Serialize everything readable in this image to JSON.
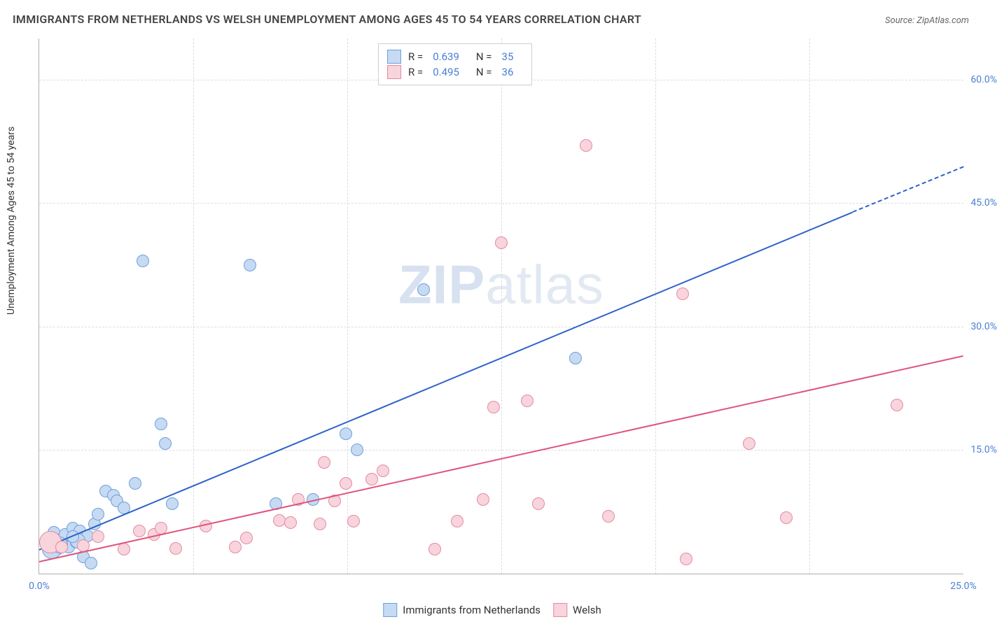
{
  "title": "IMMIGRANTS FROM NETHERLANDS VS WELSH UNEMPLOYMENT AMONG AGES 45 TO 54 YEARS CORRELATION CHART",
  "source": "Source: ZipAtlas.com",
  "ylabel": "Unemployment Among Ages 45 to 54 years",
  "watermark_a": "ZIP",
  "watermark_b": "atlas",
  "chart": {
    "type": "scatter",
    "background_color": "#ffffff",
    "grid_color": "#dcdcdc",
    "axis_color": "#b0b0b0",
    "tick_color": "#4a7fd4",
    "xlim": [
      0,
      25
    ],
    "ylim": [
      0,
      65
    ],
    "xticks": [
      0.0,
      25.0
    ],
    "xtick_labels": [
      "0.0%",
      "25.0%"
    ],
    "yticks": [
      15.0,
      30.0,
      45.0,
      60.0
    ],
    "ytick_labels": [
      "15.0%",
      "30.0%",
      "45.0%",
      "60.0%"
    ],
    "xgrid": [
      4.1667,
      8.3333,
      12.5,
      16.6667,
      20.8333
    ],
    "title_fontsize": 16,
    "label_fontsize": 14
  },
  "series": [
    {
      "key": "netherlands",
      "label": "Immigrants from Netherlands",
      "marker_fill": "#c6daf2",
      "marker_stroke": "#6d9fe0",
      "line_color": "#2e63c9",
      "r_label": "R =",
      "r_value": "0.639",
      "n_label": "N =",
      "n_value": "35",
      "trend": {
        "x1": 0.0,
        "y1": 3.0,
        "x2": 22.0,
        "y2": 44.0,
        "dash_x2": 25.0,
        "dash_y2": 49.5
      },
      "marker_radius": 9,
      "points": [
        {
          "x": 0.2,
          "y": 4.0
        },
        {
          "x": 0.3,
          "y": 3.5
        },
        {
          "x": 0.4,
          "y": 5.0
        },
        {
          "x": 0.5,
          "y": 3.0
        },
        {
          "x": 0.6,
          "y": 4.2
        },
        {
          "x": 0.7,
          "y": 4.8
        },
        {
          "x": 0.8,
          "y": 3.2
        },
        {
          "x": 0.9,
          "y": 5.5
        },
        {
          "x": 1.0,
          "y": 3.8
        },
        {
          "x": 1.1,
          "y": 5.2
        },
        {
          "x": 1.2,
          "y": 2.0
        },
        {
          "x": 1.3,
          "y": 4.6
        },
        {
          "x": 1.4,
          "y": 1.3
        },
        {
          "x": 1.5,
          "y": 6.0
        },
        {
          "x": 1.6,
          "y": 7.2
        },
        {
          "x": 1.8,
          "y": 10.0
        },
        {
          "x": 2.0,
          "y": 9.5
        },
        {
          "x": 2.1,
          "y": 8.8
        },
        {
          "x": 2.3,
          "y": 8.0
        },
        {
          "x": 2.6,
          "y": 11.0
        },
        {
          "x": 3.3,
          "y": 18.2
        },
        {
          "x": 3.4,
          "y": 15.8
        },
        {
          "x": 3.6,
          "y": 8.5
        },
        {
          "x": 2.8,
          "y": 38.0
        },
        {
          "x": 5.7,
          "y": 37.5
        },
        {
          "x": 6.4,
          "y": 8.5
        },
        {
          "x": 7.4,
          "y": 9.0
        },
        {
          "x": 8.3,
          "y": 17.0
        },
        {
          "x": 8.6,
          "y": 15.0
        },
        {
          "x": 10.4,
          "y": 34.5
        },
        {
          "x": 14.5,
          "y": 26.2
        },
        {
          "x": 0.35,
          "y": 3.0,
          "r": 14
        },
        {
          "x": 0.55,
          "y": 3.5,
          "r": 12
        },
        {
          "x": 1.05,
          "y": 4.0,
          "r": 11
        },
        {
          "x": 0.9,
          "y": 4.5
        }
      ]
    },
    {
      "key": "welsh",
      "label": "Welsh",
      "marker_fill": "#f8d4dd",
      "marker_stroke": "#e58aa2",
      "line_color": "#e0547b",
      "r_label": "R =",
      "r_value": "0.495",
      "n_label": "N =",
      "n_value": "36",
      "trend": {
        "x1": 0.0,
        "y1": 1.5,
        "x2": 25.0,
        "y2": 26.5
      },
      "marker_radius": 9,
      "points": [
        {
          "x": 0.3,
          "y": 3.8,
          "r": 16
        },
        {
          "x": 0.6,
          "y": 3.2
        },
        {
          "x": 1.2,
          "y": 3.4
        },
        {
          "x": 1.6,
          "y": 4.5
        },
        {
          "x": 2.3,
          "y": 3.0
        },
        {
          "x": 2.7,
          "y": 5.2
        },
        {
          "x": 3.1,
          "y": 4.8
        },
        {
          "x": 3.3,
          "y": 5.5
        },
        {
          "x": 3.7,
          "y": 3.1
        },
        {
          "x": 4.5,
          "y": 5.8
        },
        {
          "x": 5.3,
          "y": 3.2
        },
        {
          "x": 5.6,
          "y": 4.3
        },
        {
          "x": 6.5,
          "y": 6.5
        },
        {
          "x": 6.8,
          "y": 6.2
        },
        {
          "x": 7.0,
          "y": 9.0
        },
        {
          "x": 7.6,
          "y": 6.0
        },
        {
          "x": 7.7,
          "y": 13.5
        },
        {
          "x": 8.0,
          "y": 8.8
        },
        {
          "x": 8.3,
          "y": 11.0
        },
        {
          "x": 8.5,
          "y": 6.4
        },
        {
          "x": 9.0,
          "y": 11.5
        },
        {
          "x": 9.3,
          "y": 12.5
        },
        {
          "x": 10.7,
          "y": 3.0
        },
        {
          "x": 11.3,
          "y": 6.4
        },
        {
          "x": 12.0,
          "y": 9.0
        },
        {
          "x": 12.3,
          "y": 20.2
        },
        {
          "x": 12.5,
          "y": 40.2
        },
        {
          "x": 13.2,
          "y": 21.0
        },
        {
          "x": 13.5,
          "y": 8.5
        },
        {
          "x": 14.8,
          "y": 52.0
        },
        {
          "x": 15.4,
          "y": 7.0
        },
        {
          "x": 17.4,
          "y": 34.0
        },
        {
          "x": 17.5,
          "y": 1.8
        },
        {
          "x": 19.2,
          "y": 15.8
        },
        {
          "x": 20.2,
          "y": 6.8
        },
        {
          "x": 23.2,
          "y": 20.5
        }
      ]
    }
  ],
  "bottom_legend": [
    {
      "swatch_fill": "#c6daf2",
      "swatch_stroke": "#6d9fe0",
      "label": "Immigrants from Netherlands"
    },
    {
      "swatch_fill": "#f8d4dd",
      "swatch_stroke": "#e58aa2",
      "label": "Welsh"
    }
  ]
}
